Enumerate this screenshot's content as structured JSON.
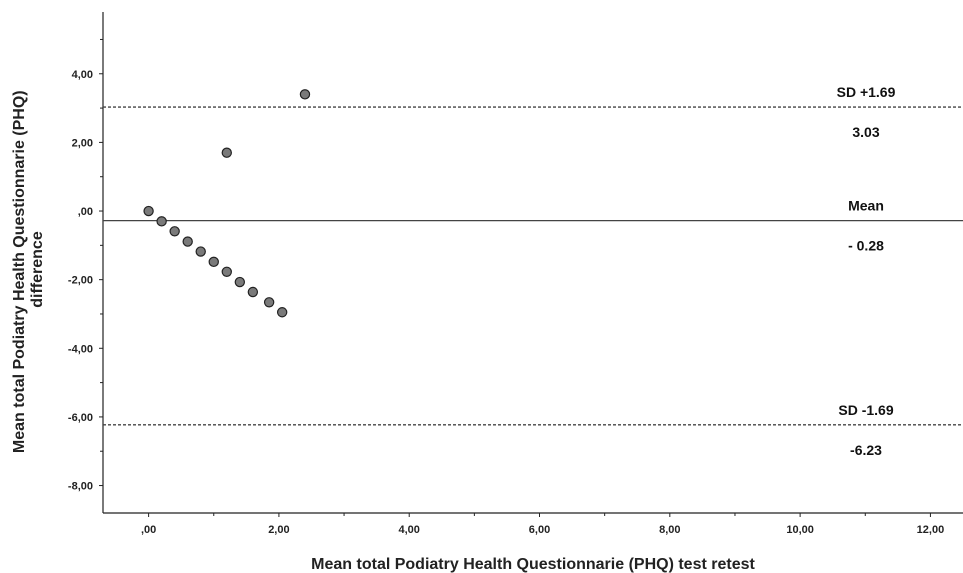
{
  "chart_data": {
    "type": "scatter",
    "title": "",
    "xlabel": "Mean total Podiatry Health Questionnarie (PHQ) test retest",
    "ylabel_lines": [
      "Mean total Podiatry Health Questionnarie (PHQ)",
      "difference"
    ],
    "xlim": [
      -0.7,
      12.5
    ],
    "ylim": [
      -8.8,
      5.8
    ],
    "x_ticks": [
      0,
      2,
      4,
      6,
      8,
      10,
      12
    ],
    "x_tick_labels": [
      ",00",
      "2,00",
      "4,00",
      "6,00",
      "8,00",
      "10,00",
      "12,00"
    ],
    "y_ticks": [
      4,
      2,
      0,
      -2,
      -4,
      -6,
      -8
    ],
    "y_tick_labels": [
      "4,00",
      "2,00",
      ",00",
      "-2,00",
      "-4,00",
      "-6,00",
      "-8,00"
    ],
    "grid": false,
    "points": [
      {
        "x": 0.0,
        "y": 0.0
      },
      {
        "x": 0.2,
        "y": -0.3
      },
      {
        "x": 0.4,
        "y": -0.59
      },
      {
        "x": 0.6,
        "y": -0.89
      },
      {
        "x": 0.8,
        "y": -1.18
      },
      {
        "x": 1.0,
        "y": -1.48
      },
      {
        "x": 1.2,
        "y": -1.77
      },
      {
        "x": 1.4,
        "y": -2.07
      },
      {
        "x": 1.6,
        "y": -2.36
      },
      {
        "x": 1.85,
        "y": -2.66
      },
      {
        "x": 2.05,
        "y": -2.95
      },
      {
        "x": 1.2,
        "y": 1.7
      },
      {
        "x": 2.4,
        "y": 3.4
      }
    ],
    "reference_lines": [
      {
        "id": "upper",
        "y": 3.03,
        "style": "dashed",
        "label_top": "SD +1.69",
        "label_bottom": "3.03"
      },
      {
        "id": "mean",
        "y": -0.28,
        "style": "solid",
        "label_top": "Mean",
        "label_bottom": "- 0.28"
      },
      {
        "id": "lower",
        "y": -6.23,
        "style": "dashed",
        "label_top": "SD -1.69",
        "label_bottom": "-6.23"
      }
    ],
    "colors": {
      "point_fill": "#7a7a7a",
      "point_stroke": "#222222",
      "line": "#444444",
      "axis": "#222222"
    }
  }
}
